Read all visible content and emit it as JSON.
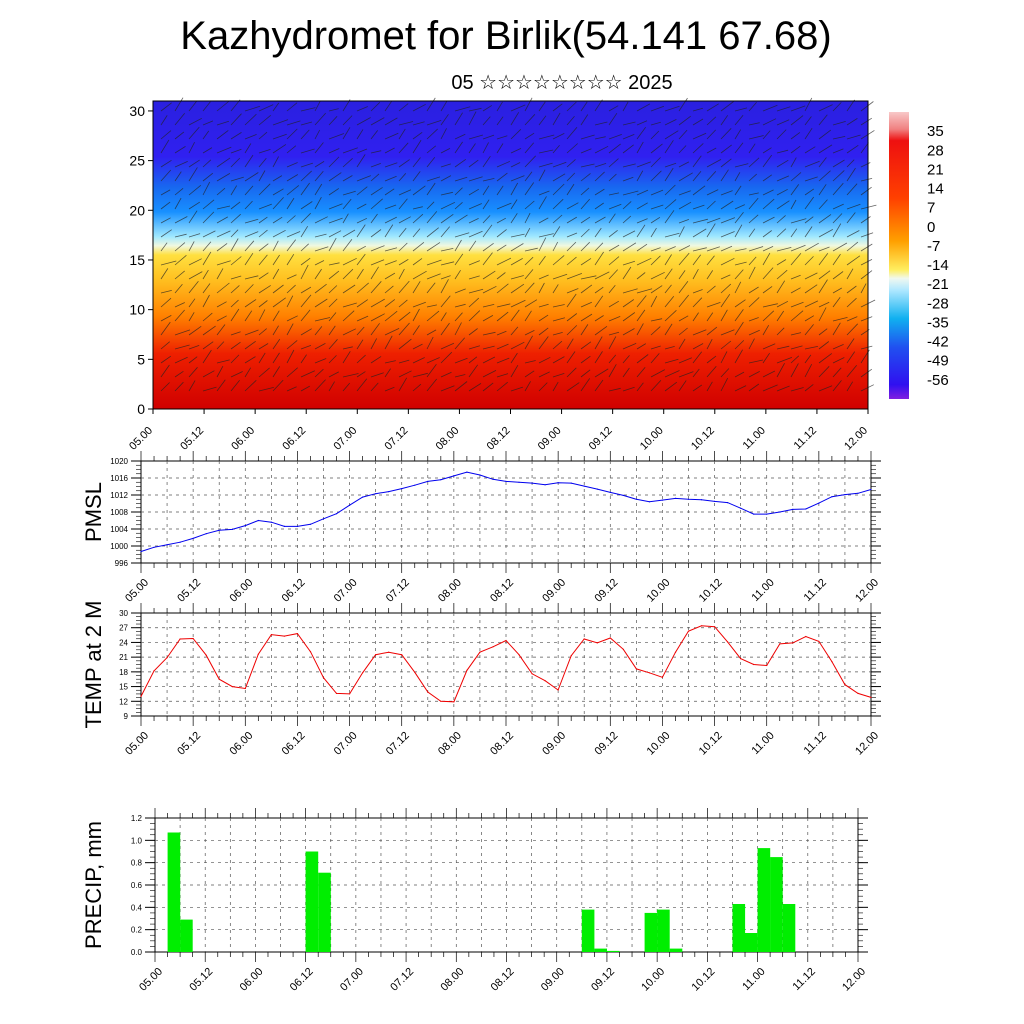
{
  "title": "Kazhydromet for Birlik(54.141 67.68)",
  "subtitle": "05 ☆☆☆☆☆☆☆☆ 2025",
  "chart_data": [
    {
      "type": "heatmap",
      "name": "temperature-cross-section",
      "x_ticks": [
        "05.00",
        "05.12",
        "06.00",
        "06.12",
        "07.00",
        "07.12",
        "08.00",
        "08.12",
        "09.00",
        "09.12",
        "10.00",
        "10.12",
        "11.00",
        "11.12",
        "12.00"
      ],
      "y_ticks": [
        0,
        5,
        10,
        15,
        20,
        25,
        30
      ],
      "ylim": [
        0,
        31
      ],
      "colorbar_labels": [
        35,
        28,
        21,
        14,
        7,
        0,
        -7,
        -14,
        -21,
        -28,
        -35,
        -42,
        -49,
        -56
      ],
      "colorbar_range": [
        -63,
        42
      ],
      "overlay": "wind barbs",
      "colors": {
        "hot": "#d00000",
        "warm": "#ff8000",
        "mild": "#ffe040",
        "cool": "#a0e8ff",
        "cold": "#1890ff",
        "frigid": "#3020f0",
        "coldest": "#8020e0"
      }
    },
    {
      "type": "line",
      "name": "pmsl",
      "ylabel": "PMSL",
      "y_ticks": [
        996,
        1000,
        1004,
        1008,
        1012,
        1016,
        1020
      ],
      "ylim": [
        996,
        1020
      ],
      "x_ticks": [
        "05.00",
        "05.12",
        "06.00",
        "06.12",
        "07.00",
        "07.12",
        "08.00",
        "08.12",
        "09.00",
        "09.12",
        "10.00",
        "10.12",
        "11.00",
        "11.12",
        "12.00"
      ],
      "x": [
        0,
        3,
        6,
        9,
        12,
        15,
        18,
        21,
        24,
        27,
        30,
        33,
        36,
        39,
        42,
        45,
        48,
        51,
        54,
        57,
        60,
        63,
        66,
        69,
        72,
        75,
        78,
        81,
        84,
        87,
        90,
        93,
        96,
        99,
        102,
        105,
        108,
        111,
        114,
        117,
        120,
        123,
        126,
        129,
        132,
        135,
        138,
        141,
        144,
        147,
        150,
        153,
        156,
        159,
        162,
        165,
        168
      ],
      "values": [
        998.7,
        999.7,
        1000.3,
        1000.9,
        1001.8,
        1002.9,
        1003.7,
        1003.9,
        1004.8,
        1006.0,
        1005.6,
        1004.6,
        1004.6,
        1005.1,
        1006.4,
        1007.6,
        1009.6,
        1011.5,
        1012.3,
        1012.8,
        1013.5,
        1014.3,
        1015.2,
        1015.6,
        1016.5,
        1017.4,
        1016.7,
        1015.7,
        1015.2,
        1015.0,
        1014.8,
        1014.4,
        1014.9,
        1014.8,
        1014.1,
        1013.4,
        1012.6,
        1011.9,
        1011.0,
        1010.4,
        1010.8,
        1011.2,
        1011.0,
        1010.9,
        1010.5,
        1010.2,
        1008.9,
        1007.5,
        1007.5,
        1008.0,
        1008.6,
        1008.7,
        1010.1,
        1011.6,
        1012.1,
        1012.4,
        1013.3
      ]
    },
    {
      "type": "line",
      "name": "temp-2m",
      "ylabel": "TEMP at 2 M",
      "y_ticks": [
        9,
        12,
        15,
        18,
        21,
        24,
        27,
        30
      ],
      "ylim": [
        9,
        30
      ],
      "x_ticks": [
        "05.00",
        "05.12",
        "06.00",
        "06.12",
        "07.00",
        "07.12",
        "08.00",
        "08.12",
        "09.00",
        "09.12",
        "10.00",
        "10.12",
        "11.00",
        "11.12",
        "12.00"
      ],
      "x": [
        0,
        3,
        6,
        9,
        12,
        15,
        18,
        21,
        24,
        27,
        30,
        33,
        36,
        39,
        42,
        45,
        48,
        51,
        54,
        57,
        60,
        63,
        66,
        69,
        72,
        75,
        78,
        81,
        84,
        87,
        90,
        93,
        96,
        99,
        102,
        105,
        108,
        111,
        114,
        117,
        120,
        123,
        126,
        129,
        132,
        135,
        138,
        141,
        144,
        147,
        150,
        153,
        156,
        159,
        162,
        165,
        168
      ],
      "values": [
        13.0,
        18.2,
        20.9,
        24.7,
        24.8,
        21.4,
        16.5,
        15.0,
        14.6,
        21.6,
        25.6,
        25.3,
        25.8,
        22.1,
        16.8,
        13.6,
        13.5,
        17.8,
        21.5,
        22.0,
        21.5,
        17.9,
        13.9,
        12.0,
        11.9,
        18.3,
        22.0,
        23.1,
        24.4,
        21.5,
        17.6,
        16.2,
        14.3,
        21.3,
        24.7,
        23.9,
        24.9,
        22.6,
        18.6,
        17.8,
        16.9,
        22.0,
        26.3,
        27.4,
        27.2,
        24.1,
        20.7,
        19.5,
        19.3,
        23.7,
        23.9,
        25.2,
        24.2,
        20.1,
        15.4,
        13.6,
        12.8
      ]
    },
    {
      "type": "bar",
      "name": "precip",
      "ylabel": "PRECIP, mm",
      "y_ticks": [
        0.0,
        0.2,
        0.4,
        0.6,
        0.8,
        1.0,
        1.2
      ],
      "ylim": [
        0,
        1.2
      ],
      "x_ticks": [
        "05.00",
        "05.12",
        "06.00",
        "06.12",
        "07.00",
        "07.12",
        "08.00",
        "08.12",
        "09.00",
        "09.12",
        "10.00",
        "10.12",
        "11.00",
        "11.12",
        "12.00"
      ],
      "bar_width_hours": 3,
      "x": [
        3,
        6,
        36,
        39,
        102,
        105,
        108,
        117,
        120,
        123,
        138,
        141,
        144,
        147,
        150
      ],
      "values": [
        1.07,
        0.29,
        0.9,
        0.71,
        0.38,
        0.03,
        0.01,
        0.35,
        0.38,
        0.03,
        0.43,
        0.17,
        0.93,
        0.85,
        0.43
      ],
      "color": "#00ee00"
    }
  ]
}
